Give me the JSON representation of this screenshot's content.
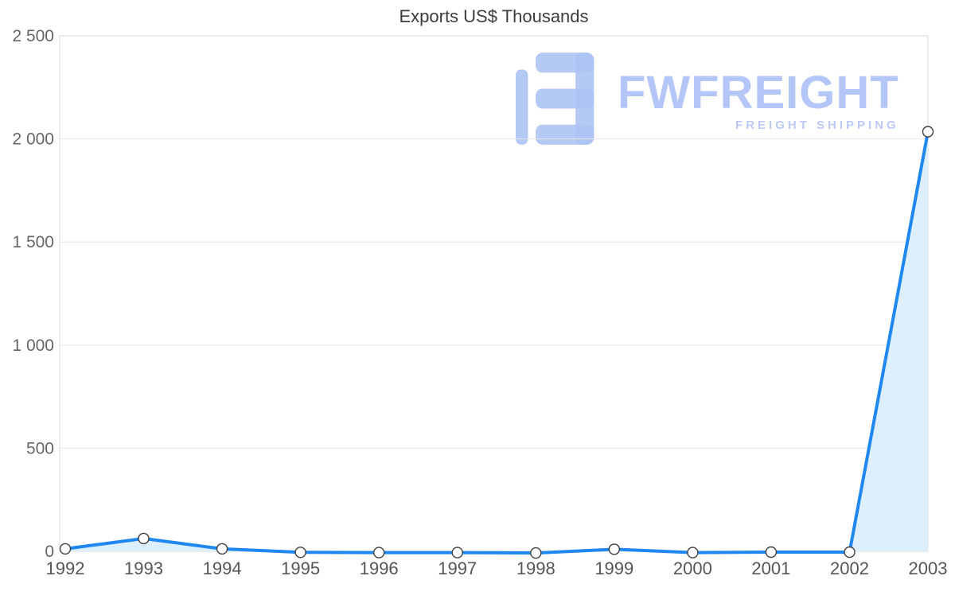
{
  "title": "Exports US$ Thousands",
  "watermark": {
    "brand": "FWFREIGHT",
    "tagline": "FREIGHT SHIPPING",
    "color": "#b3c6f7"
  },
  "chart_data": {
    "type": "area",
    "title": "Exports US$ Thousands",
    "categories": [
      "1992",
      "1993",
      "1994",
      "1995",
      "1996",
      "1997",
      "1998",
      "1999",
      "2000",
      "2001",
      "2002",
      "2003"
    ],
    "values": [
      12,
      62,
      12,
      -5,
      -6,
      -6,
      -8,
      10,
      -6,
      -4,
      -4,
      2035
    ],
    "xlabel": "",
    "ylabel": "",
    "ylim": [
      0,
      2500
    ],
    "yticks": [
      0,
      500,
      1000,
      1500,
      2000,
      2500
    ],
    "ytick_labels": [
      "0",
      "500",
      "1 000",
      "1 500",
      "2 000",
      "2 500"
    ],
    "grid": "horizontal",
    "legend": "none",
    "line_color": "#1e88f0",
    "fill_color": "#ddeefc",
    "marker_fill": "#ffffff",
    "marker_stroke": "#3f3f3f",
    "axis_label_color": "#666666",
    "x_label_color": "#565656",
    "grid_color": "#e6e6e6",
    "border_color": "#d9d9d9"
  }
}
